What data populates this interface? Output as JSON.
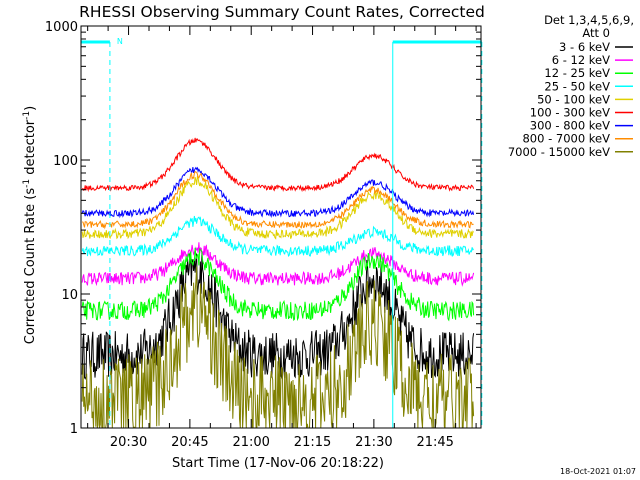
{
  "chart_data": {
    "type": "line",
    "title": "RHESSI Observing Summary Count Rates, Corrected",
    "xlabel": "Start Time (17-Nov-06 20:18:22)",
    "ylabel_main": "Corrected Count Rate (s",
    "ylabel_sup1": "-1",
    "ylabel_mid": " detector",
    "ylabel_sup2": "-1",
    "ylabel_end": ")",
    "yscale": "log",
    "ylim": [
      1,
      1000
    ],
    "xlim_minutes": [
      20.3,
      21.937
    ],
    "x_tick_labels": [
      "20:30",
      "20:45",
      "21:00",
      "21:15",
      "21:30",
      "21:45"
    ],
    "x_tick_hours": [
      20.5,
      20.75,
      21.0,
      21.25,
      21.5,
      21.75
    ],
    "y_tick_labels": [
      "1",
      "10",
      "100",
      "1000"
    ],
    "y_tick_values": [
      1,
      10,
      100,
      1000
    ],
    "legend_header": [
      "Det 1,3,4,5,6,9,",
      "Att 0"
    ],
    "legend_position": "right",
    "timestamp": "18-Oct-2021 01:07",
    "night_marker": "N",
    "saa_color": "#00ffff",
    "eclipse_intervals_hours": [
      [
        20.306,
        20.424
      ],
      [
        21.577,
        21.94
      ]
    ],
    "series": [
      {
        "name": "3 - 6 keV",
        "color": "#000000",
        "base": 3.5,
        "peak1": 15,
        "peak2": 13,
        "noise": 0.18
      },
      {
        "name": "6 - 12 keV",
        "color": "#ff00ff",
        "base": 13,
        "peak1": 22,
        "peak2": 20,
        "noise": 0.05
      },
      {
        "name": "12 - 25 keV",
        "color": "#00ff00",
        "base": 7.5,
        "peak1": 19,
        "peak2": 18,
        "noise": 0.07
      },
      {
        "name": "25 - 50 keV",
        "color": "#00ffff",
        "base": 21,
        "peak1": 35,
        "peak2": 29,
        "noise": 0.04
      },
      {
        "name": "50 - 100 keV",
        "color": "#e0d000",
        "base": 28,
        "peak1": 70,
        "peak2": 55,
        "noise": 0.035
      },
      {
        "name": "100 - 300 keV",
        "color": "#ff0000",
        "base": 62,
        "peak1": 140,
        "peak2": 108,
        "noise": 0.02
      },
      {
        "name": "300 - 800 keV",
        "color": "#0000ff",
        "base": 40,
        "peak1": 85,
        "peak2": 68,
        "noise": 0.025
      },
      {
        "name": "800 - 7000 keV",
        "color": "#ff8c00",
        "base": 33,
        "peak1": 78,
        "peak2": 60,
        "noise": 0.025
      },
      {
        "name": "7000 - 15000 keV",
        "color": "#808000",
        "base": 1.6,
        "peak1": 8,
        "peak2": 6,
        "noise": 0.35
      }
    ]
  }
}
